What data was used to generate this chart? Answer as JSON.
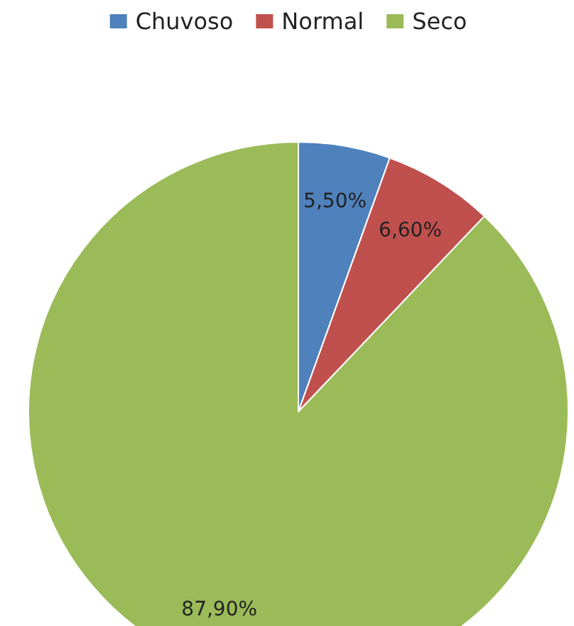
{
  "chart_data": {
    "type": "pie",
    "categories": [
      "Chuvoso",
      "Normal",
      "Seco"
    ],
    "values": [
      5.5,
      6.6,
      87.9
    ],
    "colors": [
      "#4f81bd",
      "#c0504d",
      "#9bbb59"
    ],
    "value_labels": [
      "5,50%",
      "6,60%",
      "87,90%"
    ],
    "legend": "top"
  }
}
